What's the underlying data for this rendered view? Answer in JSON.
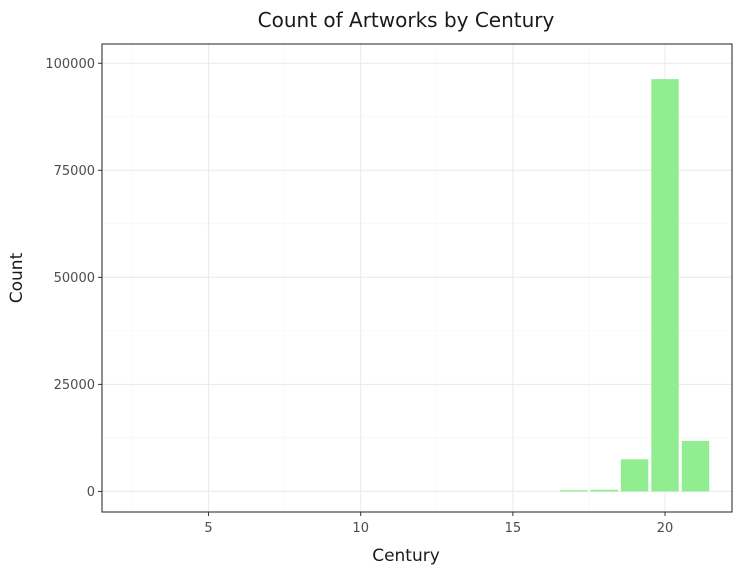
{
  "chart_data": {
    "type": "bar",
    "title": "Count of Artworks by Century",
    "xlabel": "Century",
    "ylabel": "Count",
    "x": [
      17,
      18,
      19,
      20,
      21
    ],
    "values": [
      300,
      400,
      7500,
      96300,
      11800
    ],
    "xlim": [
      1.5,
      22.2
    ],
    "ylim": [
      -4800,
      104500
    ],
    "xticks": [
      5,
      10,
      15,
      20
    ],
    "yticks": [
      0,
      25000,
      50000,
      75000,
      100000
    ],
    "bar_color": "#90EE90",
    "grid": true,
    "legend": "none"
  }
}
